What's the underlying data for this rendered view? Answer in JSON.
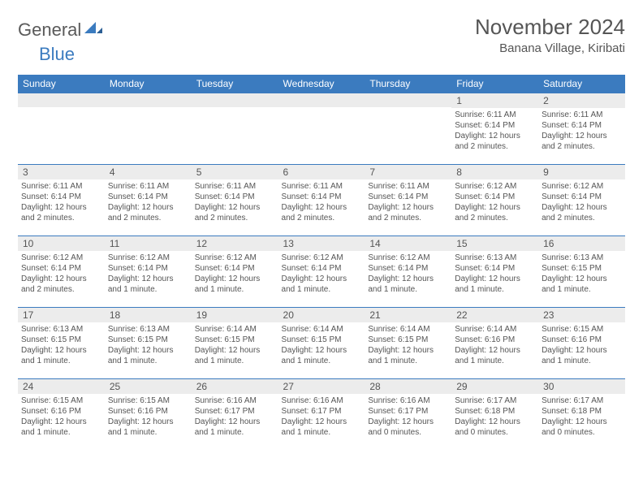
{
  "brand": {
    "part1": "General",
    "part2": "Blue"
  },
  "title": "November 2024",
  "location": "Banana Village, Kiribati",
  "colors": {
    "header_bg": "#3b7bbf",
    "header_text": "#ffffff",
    "daynum_bg": "#ececec",
    "text": "#555555",
    "border": "#3b7bbf"
  },
  "fonts": {
    "title_size": 26,
    "location_size": 15,
    "dayhead_size": 12,
    "daynum_size": 12,
    "info_size": 10
  },
  "day_headers": [
    "Sunday",
    "Monday",
    "Tuesday",
    "Wednesday",
    "Thursday",
    "Friday",
    "Saturday"
  ],
  "weeks": [
    [
      null,
      null,
      null,
      null,
      null,
      {
        "n": "1",
        "sr": "Sunrise: 6:11 AM",
        "ss": "Sunset: 6:14 PM",
        "dl1": "Daylight: 12 hours",
        "dl2": "and 2 minutes."
      },
      {
        "n": "2",
        "sr": "Sunrise: 6:11 AM",
        "ss": "Sunset: 6:14 PM",
        "dl1": "Daylight: 12 hours",
        "dl2": "and 2 minutes."
      }
    ],
    [
      {
        "n": "3",
        "sr": "Sunrise: 6:11 AM",
        "ss": "Sunset: 6:14 PM",
        "dl1": "Daylight: 12 hours",
        "dl2": "and 2 minutes."
      },
      {
        "n": "4",
        "sr": "Sunrise: 6:11 AM",
        "ss": "Sunset: 6:14 PM",
        "dl1": "Daylight: 12 hours",
        "dl2": "and 2 minutes."
      },
      {
        "n": "5",
        "sr": "Sunrise: 6:11 AM",
        "ss": "Sunset: 6:14 PM",
        "dl1": "Daylight: 12 hours",
        "dl2": "and 2 minutes."
      },
      {
        "n": "6",
        "sr": "Sunrise: 6:11 AM",
        "ss": "Sunset: 6:14 PM",
        "dl1": "Daylight: 12 hours",
        "dl2": "and 2 minutes."
      },
      {
        "n": "7",
        "sr": "Sunrise: 6:11 AM",
        "ss": "Sunset: 6:14 PM",
        "dl1": "Daylight: 12 hours",
        "dl2": "and 2 minutes."
      },
      {
        "n": "8",
        "sr": "Sunrise: 6:12 AM",
        "ss": "Sunset: 6:14 PM",
        "dl1": "Daylight: 12 hours",
        "dl2": "and 2 minutes."
      },
      {
        "n": "9",
        "sr": "Sunrise: 6:12 AM",
        "ss": "Sunset: 6:14 PM",
        "dl1": "Daylight: 12 hours",
        "dl2": "and 2 minutes."
      }
    ],
    [
      {
        "n": "10",
        "sr": "Sunrise: 6:12 AM",
        "ss": "Sunset: 6:14 PM",
        "dl1": "Daylight: 12 hours",
        "dl2": "and 2 minutes."
      },
      {
        "n": "11",
        "sr": "Sunrise: 6:12 AM",
        "ss": "Sunset: 6:14 PM",
        "dl1": "Daylight: 12 hours",
        "dl2": "and 1 minute."
      },
      {
        "n": "12",
        "sr": "Sunrise: 6:12 AM",
        "ss": "Sunset: 6:14 PM",
        "dl1": "Daylight: 12 hours",
        "dl2": "and 1 minute."
      },
      {
        "n": "13",
        "sr": "Sunrise: 6:12 AM",
        "ss": "Sunset: 6:14 PM",
        "dl1": "Daylight: 12 hours",
        "dl2": "and 1 minute."
      },
      {
        "n": "14",
        "sr": "Sunrise: 6:12 AM",
        "ss": "Sunset: 6:14 PM",
        "dl1": "Daylight: 12 hours",
        "dl2": "and 1 minute."
      },
      {
        "n": "15",
        "sr": "Sunrise: 6:13 AM",
        "ss": "Sunset: 6:14 PM",
        "dl1": "Daylight: 12 hours",
        "dl2": "and 1 minute."
      },
      {
        "n": "16",
        "sr": "Sunrise: 6:13 AM",
        "ss": "Sunset: 6:15 PM",
        "dl1": "Daylight: 12 hours",
        "dl2": "and 1 minute."
      }
    ],
    [
      {
        "n": "17",
        "sr": "Sunrise: 6:13 AM",
        "ss": "Sunset: 6:15 PM",
        "dl1": "Daylight: 12 hours",
        "dl2": "and 1 minute."
      },
      {
        "n": "18",
        "sr": "Sunrise: 6:13 AM",
        "ss": "Sunset: 6:15 PM",
        "dl1": "Daylight: 12 hours",
        "dl2": "and 1 minute."
      },
      {
        "n": "19",
        "sr": "Sunrise: 6:14 AM",
        "ss": "Sunset: 6:15 PM",
        "dl1": "Daylight: 12 hours",
        "dl2": "and 1 minute."
      },
      {
        "n": "20",
        "sr": "Sunrise: 6:14 AM",
        "ss": "Sunset: 6:15 PM",
        "dl1": "Daylight: 12 hours",
        "dl2": "and 1 minute."
      },
      {
        "n": "21",
        "sr": "Sunrise: 6:14 AM",
        "ss": "Sunset: 6:15 PM",
        "dl1": "Daylight: 12 hours",
        "dl2": "and 1 minute."
      },
      {
        "n": "22",
        "sr": "Sunrise: 6:14 AM",
        "ss": "Sunset: 6:16 PM",
        "dl1": "Daylight: 12 hours",
        "dl2": "and 1 minute."
      },
      {
        "n": "23",
        "sr": "Sunrise: 6:15 AM",
        "ss": "Sunset: 6:16 PM",
        "dl1": "Daylight: 12 hours",
        "dl2": "and 1 minute."
      }
    ],
    [
      {
        "n": "24",
        "sr": "Sunrise: 6:15 AM",
        "ss": "Sunset: 6:16 PM",
        "dl1": "Daylight: 12 hours",
        "dl2": "and 1 minute."
      },
      {
        "n": "25",
        "sr": "Sunrise: 6:15 AM",
        "ss": "Sunset: 6:16 PM",
        "dl1": "Daylight: 12 hours",
        "dl2": "and 1 minute."
      },
      {
        "n": "26",
        "sr": "Sunrise: 6:16 AM",
        "ss": "Sunset: 6:17 PM",
        "dl1": "Daylight: 12 hours",
        "dl2": "and 1 minute."
      },
      {
        "n": "27",
        "sr": "Sunrise: 6:16 AM",
        "ss": "Sunset: 6:17 PM",
        "dl1": "Daylight: 12 hours",
        "dl2": "and 1 minute."
      },
      {
        "n": "28",
        "sr": "Sunrise: 6:16 AM",
        "ss": "Sunset: 6:17 PM",
        "dl1": "Daylight: 12 hours",
        "dl2": "and 0 minutes."
      },
      {
        "n": "29",
        "sr": "Sunrise: 6:17 AM",
        "ss": "Sunset: 6:18 PM",
        "dl1": "Daylight: 12 hours",
        "dl2": "and 0 minutes."
      },
      {
        "n": "30",
        "sr": "Sunrise: 6:17 AM",
        "ss": "Sunset: 6:18 PM",
        "dl1": "Daylight: 12 hours",
        "dl2": "and 0 minutes."
      }
    ]
  ]
}
